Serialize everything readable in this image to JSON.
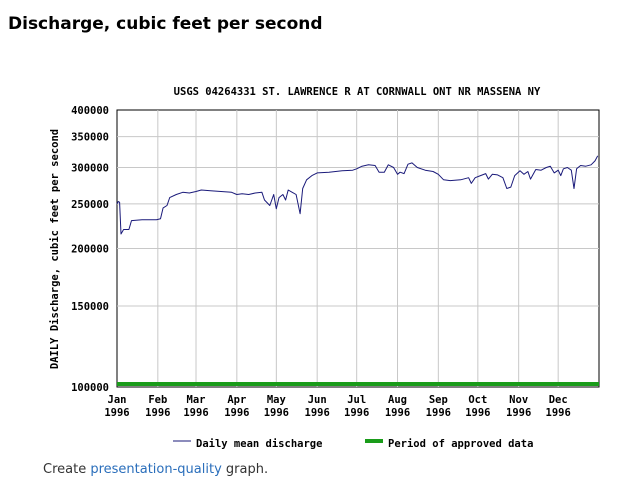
{
  "page": {
    "heading": "Discharge, cubic feet per second"
  },
  "footer": {
    "prefix": "Create ",
    "link": "presentation-quality",
    "suffix": " graph."
  },
  "colors": {
    "series": "#1a1a7a",
    "approved": "#1a9c1a",
    "grid": "#c8c8c8",
    "link": "#2a6ebb"
  },
  "chart_data": {
    "type": "line",
    "title": "USGS 04264331 ST. LAWRENCE R AT CORNWALL ONT NR MASSENA NY",
    "ylabel": "DAILY Discharge, cubic feet per second",
    "xlabel": "",
    "yscale": "log",
    "ylim": [
      100000,
      400000
    ],
    "yticks": [
      100000,
      150000,
      200000,
      250000,
      300000,
      350000,
      400000
    ],
    "ytick_labels": [
      "100000",
      "150000",
      "200000",
      "250000",
      "300000",
      "350000",
      "400000"
    ],
    "xlim": [
      "1996-01-01",
      "1996-12-31"
    ],
    "xticks": [
      {
        "date": "1996-01-01",
        "month": "Jan",
        "year": "1996"
      },
      {
        "date": "1996-02-01",
        "month": "Feb",
        "year": "1996"
      },
      {
        "date": "1996-03-01",
        "month": "Mar",
        "year": "1996"
      },
      {
        "date": "1996-04-01",
        "month": "Apr",
        "year": "1996"
      },
      {
        "date": "1996-05-01",
        "month": "May",
        "year": "1996"
      },
      {
        "date": "1996-06-01",
        "month": "Jun",
        "year": "1996"
      },
      {
        "date": "1996-07-01",
        "month": "Jul",
        "year": "1996"
      },
      {
        "date": "1996-08-01",
        "month": "Aug",
        "year": "1996"
      },
      {
        "date": "1996-09-01",
        "month": "Sep",
        "year": "1996"
      },
      {
        "date": "1996-10-01",
        "month": "Oct",
        "year": "1996"
      },
      {
        "date": "1996-11-01",
        "month": "Nov",
        "year": "1996"
      },
      {
        "date": "1996-12-01",
        "month": "Dec",
        "year": "1996"
      }
    ],
    "grid": true,
    "legend_position": "bottom",
    "series": [
      {
        "name": "Daily mean discharge",
        "points": [
          [
            "1996-01-01",
            250000
          ],
          [
            "1996-01-02",
            253000
          ],
          [
            "1996-01-03",
            252000
          ],
          [
            "1996-01-04",
            215000
          ],
          [
            "1996-01-06",
            220000
          ],
          [
            "1996-01-10",
            220000
          ],
          [
            "1996-01-12",
            230000
          ],
          [
            "1996-01-20",
            231000
          ],
          [
            "1996-01-31",
            231000
          ],
          [
            "1996-02-03",
            232000
          ],
          [
            "1996-02-05",
            245000
          ],
          [
            "1996-02-08",
            248000
          ],
          [
            "1996-02-10",
            258000
          ],
          [
            "1996-02-15",
            262000
          ],
          [
            "1996-02-20",
            265000
          ],
          [
            "1996-02-25",
            264000
          ],
          [
            "1996-03-01",
            266000
          ],
          [
            "1996-03-05",
            268000
          ],
          [
            "1996-03-12",
            267000
          ],
          [
            "1996-03-20",
            266000
          ],
          [
            "1996-03-28",
            265000
          ],
          [
            "1996-04-01",
            262000
          ],
          [
            "1996-04-05",
            263000
          ],
          [
            "1996-04-10",
            262000
          ],
          [
            "1996-04-15",
            264000
          ],
          [
            "1996-04-20",
            265000
          ],
          [
            "1996-04-22",
            255000
          ],
          [
            "1996-04-26",
            248000
          ],
          [
            "1996-04-29",
            262000
          ],
          [
            "1996-05-01",
            244000
          ],
          [
            "1996-05-03",
            258000
          ],
          [
            "1996-05-06",
            262000
          ],
          [
            "1996-05-08",
            255000
          ],
          [
            "1996-05-10",
            268000
          ],
          [
            "1996-05-13",
            265000
          ],
          [
            "1996-05-16",
            262000
          ],
          [
            "1996-05-19",
            238000
          ],
          [
            "1996-05-21",
            270000
          ],
          [
            "1996-05-24",
            282000
          ],
          [
            "1996-05-28",
            288000
          ],
          [
            "1996-06-01",
            292000
          ],
          [
            "1996-06-10",
            293000
          ],
          [
            "1996-06-20",
            295000
          ],
          [
            "1996-06-28",
            296000
          ],
          [
            "1996-07-01",
            298000
          ],
          [
            "1996-07-05",
            302000
          ],
          [
            "1996-07-10",
            304000
          ],
          [
            "1996-07-15",
            303000
          ],
          [
            "1996-07-18",
            293000
          ],
          [
            "1996-07-22",
            293000
          ],
          [
            "1996-07-25",
            304000
          ],
          [
            "1996-07-29",
            300000
          ],
          [
            "1996-08-01",
            290000
          ],
          [
            "1996-08-03",
            293000
          ],
          [
            "1996-08-06",
            291000
          ],
          [
            "1996-08-09",
            305000
          ],
          [
            "1996-08-12",
            307000
          ],
          [
            "1996-08-16",
            300000
          ],
          [
            "1996-08-22",
            296000
          ],
          [
            "1996-08-28",
            294000
          ],
          [
            "1996-09-01",
            290000
          ],
          [
            "1996-09-05",
            282000
          ],
          [
            "1996-09-10",
            281000
          ],
          [
            "1996-09-18",
            282000
          ],
          [
            "1996-09-24",
            285000
          ],
          [
            "1996-09-26",
            277000
          ],
          [
            "1996-09-29",
            285000
          ],
          [
            "1996-10-03",
            288000
          ],
          [
            "1996-10-07",
            291000
          ],
          [
            "1996-10-09",
            283000
          ],
          [
            "1996-10-12",
            290000
          ],
          [
            "1996-10-16",
            289000
          ],
          [
            "1996-10-20",
            285000
          ],
          [
            "1996-10-23",
            270000
          ],
          [
            "1996-10-26",
            272000
          ],
          [
            "1996-10-29",
            288000
          ],
          [
            "1996-11-02",
            295000
          ],
          [
            "1996-11-05",
            290000
          ],
          [
            "1996-11-08",
            294000
          ],
          [
            "1996-11-10",
            283000
          ],
          [
            "1996-11-14",
            297000
          ],
          [
            "1996-11-18",
            296000
          ],
          [
            "1996-11-22",
            300000
          ],
          [
            "1996-11-25",
            302000
          ],
          [
            "1996-11-28",
            292000
          ],
          [
            "1996-12-01",
            296000
          ],
          [
            "1996-12-03",
            288000
          ],
          [
            "1996-12-05",
            298000
          ],
          [
            "1996-12-08",
            300000
          ],
          [
            "1996-12-11",
            296000
          ],
          [
            "1996-12-13",
            270000
          ],
          [
            "1996-12-15",
            298000
          ],
          [
            "1996-12-18",
            303000
          ],
          [
            "1996-12-22",
            302000
          ],
          [
            "1996-12-26",
            304000
          ],
          [
            "1996-12-29",
            310000
          ],
          [
            "1996-12-31",
            318000
          ]
        ]
      },
      {
        "name": "Period of approved data",
        "date_range": [
          "1996-01-01",
          "1996-12-31"
        ]
      }
    ]
  }
}
